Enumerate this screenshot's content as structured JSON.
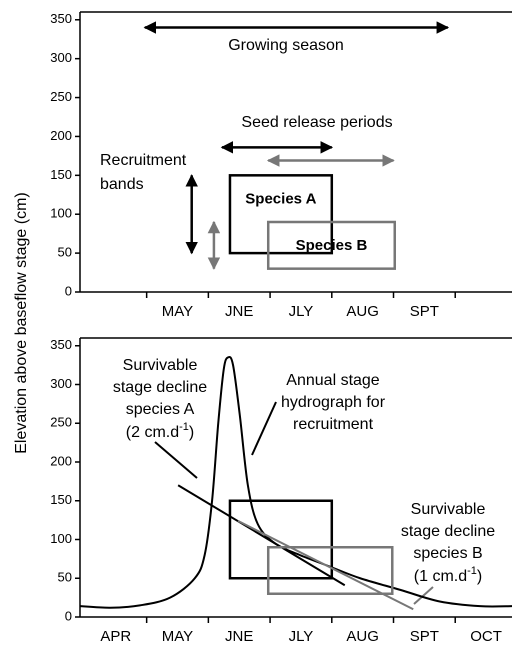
{
  "chart_data": [
    {
      "type": "schematic",
      "categories": [
        null,
        "MAY",
        "JNE",
        "JLY",
        "AUG",
        "SPT",
        null
      ],
      "xlim": [
        -0.08,
        6.92
      ],
      "ylim": [
        0,
        360
      ],
      "yticks": [
        0,
        50,
        100,
        150,
        200,
        250,
        300,
        350
      ],
      "growing_season": {
        "label": "Growing season",
        "x": [
          0.97,
          5.88
        ],
        "y": 340
      },
      "seed_release_label": "Seed release periods",
      "recruitment_label": [
        "Recruitment",
        "bands"
      ],
      "series": [
        {
          "name": "Species A",
          "color": "#000000",
          "box_x": [
            2.35,
            4.0
          ],
          "box_y": [
            50,
            150
          ],
          "release_x": [
            2.22,
            4.0
          ],
          "release_y": 186,
          "band_x": 1.73,
          "band_y": [
            50,
            150
          ]
        },
        {
          "name": "Species B",
          "color": "#777777",
          "box_x": [
            2.97,
            5.02
          ],
          "box_y": [
            30,
            90
          ],
          "release_x": [
            2.97,
            5.0
          ],
          "release_y": 169,
          "band_x": 2.09,
          "band_y": [
            30,
            90
          ]
        }
      ]
    },
    {
      "type": "schematic",
      "categories": [
        "APR",
        "MAY",
        "JNE",
        "JLY",
        "AUG",
        "SPT",
        "OCT"
      ],
      "xlim": [
        -0.08,
        6.92
      ],
      "ylim": [
        0,
        360
      ],
      "yticks": [
        0,
        50,
        100,
        150,
        200,
        250,
        300,
        350
      ],
      "ylabel": "Elevation above baseflow stage (cm)",
      "hydrograph": {
        "color": "#000000",
        "x": [
          -0.08,
          0.41,
          0.89,
          1.38,
          1.78,
          1.94,
          2.06,
          2.16,
          2.25,
          2.32,
          2.4,
          2.51,
          2.64,
          2.8,
          3.08,
          3.48,
          3.97,
          4.46,
          5.11,
          5.75,
          6.4,
          6.92
        ],
        "y": [
          14,
          12,
          15,
          25,
          50,
          80,
          150,
          250,
          320,
          335,
          325,
          260,
          170,
          120,
          95,
          80,
          65,
          50,
          35,
          20,
          14,
          14
        ]
      },
      "annotation_hydrograph": [
        "Annual stage",
        "hydrograph for",
        "recruitment"
      ],
      "annotation_a": {
        "lines": [
          "Survivable",
          "stage decline",
          "species A"
        ],
        "rate": "(2 cm.d",
        "rate_exp": "-1",
        "rate_end": ")"
      },
      "annotation_b": {
        "lines": [
          "Survivable",
          "stage decline",
          "species B"
        ],
        "rate": "(1 cm.d",
        "rate_exp": "-1",
        "rate_end": ")"
      },
      "series": [
        {
          "color": "#000000",
          "box_x": [
            2.35,
            4.0
          ],
          "box_y": [
            50,
            150
          ],
          "decline_x": [
            1.51,
            4.21
          ],
          "decline_y": [
            170,
            41
          ]
        },
        {
          "color": "#777777",
          "box_x": [
            2.97,
            4.98
          ],
          "box_y": [
            30,
            90
          ],
          "decline_x": [
            2.48,
            5.32
          ],
          "decline_y": [
            124,
            10
          ]
        }
      ]
    }
  ]
}
